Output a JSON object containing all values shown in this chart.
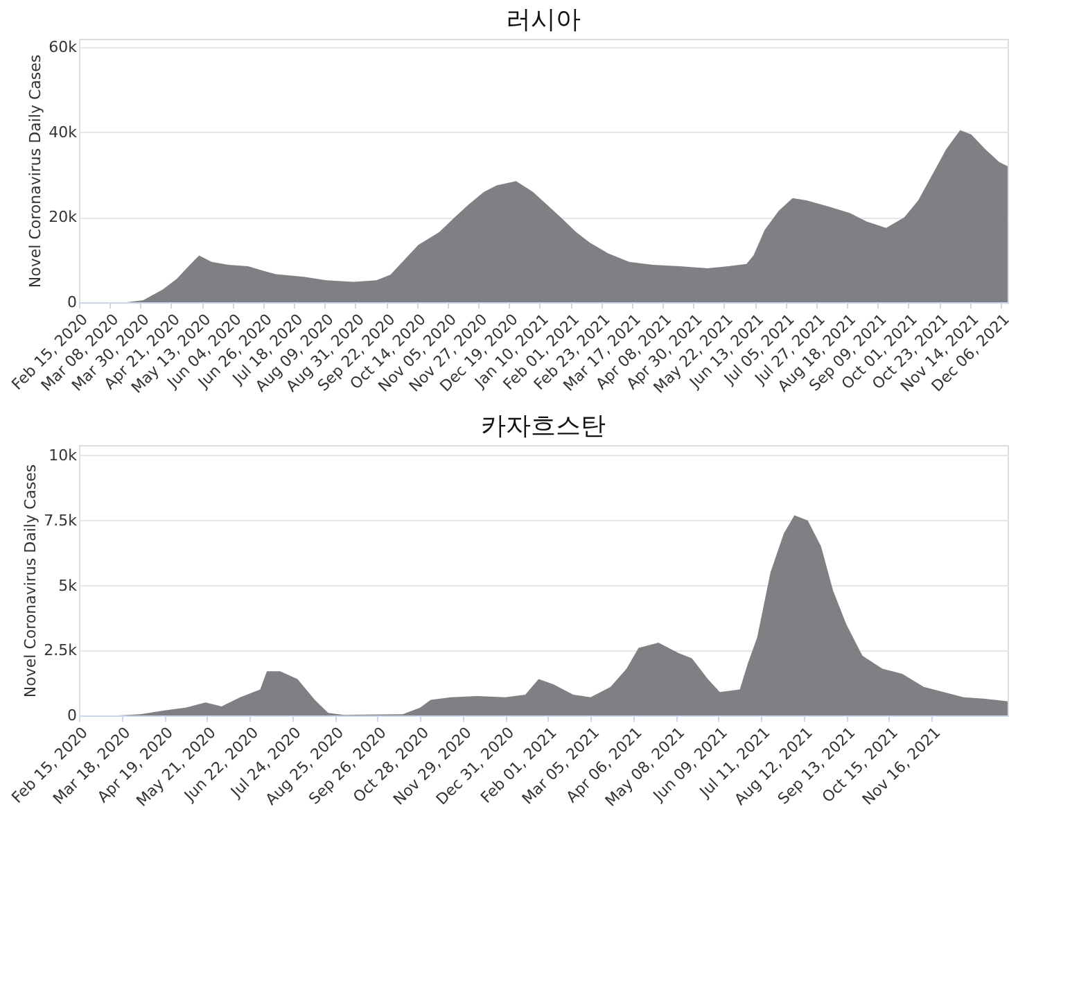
{
  "chart_data": [
    {
      "type": "area",
      "title": "러시아",
      "ylabel": "Novel Coronavirus Daily Cases",
      "grid": "y",
      "color": "#808084",
      "x": [
        "2020-02-15",
        "2020-03-20",
        "2020-04-01",
        "2020-04-15",
        "2020-04-25",
        "2020-05-05",
        "2020-05-11",
        "2020-05-20",
        "2020-06-01",
        "2020-06-15",
        "2020-06-25",
        "2020-07-05",
        "2020-07-25",
        "2020-08-10",
        "2020-08-30",
        "2020-09-15",
        "2020-09-25",
        "2020-10-05",
        "2020-10-15",
        "2020-10-30",
        "2020-11-10",
        "2020-11-20",
        "2020-12-01",
        "2020-12-10",
        "2020-12-24",
        "2021-01-05",
        "2021-01-15",
        "2021-01-25",
        "2021-02-05",
        "2021-02-15",
        "2021-02-28",
        "2021-03-15",
        "2021-04-01",
        "2021-04-20",
        "2021-05-10",
        "2021-05-25",
        "2021-06-07",
        "2021-06-12",
        "2021-06-20",
        "2021-06-30",
        "2021-07-10",
        "2021-07-20",
        "2021-08-05",
        "2021-08-20",
        "2021-09-01",
        "2021-09-15",
        "2021-09-28",
        "2021-10-08",
        "2021-10-18",
        "2021-10-28",
        "2021-11-07",
        "2021-11-15",
        "2021-11-25",
        "2021-12-05",
        "2021-12-11"
      ],
      "values": [
        0,
        0,
        500,
        3000,
        5500,
        9000,
        11000,
        9500,
        8800,
        8500,
        7500,
        6600,
        6000,
        5200,
        4800,
        5200,
        6500,
        10000,
        13500,
        16500,
        20000,
        23000,
        26000,
        27500,
        28500,
        26000,
        23000,
        20000,
        16500,
        14000,
        11500,
        9500,
        8800,
        8500,
        8000,
        8500,
        9000,
        11000,
        17000,
        21500,
        24500,
        24000,
        22500,
        21000,
        19000,
        17500,
        20000,
        24000,
        30000,
        36000,
        40500,
        39500,
        36000,
        33000,
        32000
      ],
      "xlim": [
        "2020-02-15",
        "2021-12-11"
      ],
      "xticks": [
        {
          "value": "2020-02-15",
          "label": "Feb 15, 2020"
        },
        {
          "value": "2020-03-08",
          "label": "Mar 08, 2020"
        },
        {
          "value": "2020-03-30",
          "label": "Mar 30, 2020"
        },
        {
          "value": "2020-04-21",
          "label": "Apr 21, 2020"
        },
        {
          "value": "2020-05-13",
          "label": "May 13, 2020"
        },
        {
          "value": "2020-06-04",
          "label": "Jun 04, 2020"
        },
        {
          "value": "2020-06-26",
          "label": "Jun 26, 2020"
        },
        {
          "value": "2020-07-18",
          "label": "Jul 18, 2020"
        },
        {
          "value": "2020-08-09",
          "label": "Aug 09, 2020"
        },
        {
          "value": "2020-08-31",
          "label": "Aug 31, 2020"
        },
        {
          "value": "2020-09-22",
          "label": "Sep 22, 2020"
        },
        {
          "value": "2020-10-14",
          "label": "Oct 14, 2020"
        },
        {
          "value": "2020-11-05",
          "label": "Nov 05, 2020"
        },
        {
          "value": "2020-11-27",
          "label": "Nov 27, 2020"
        },
        {
          "value": "2020-12-19",
          "label": "Dec 19, 2020"
        },
        {
          "value": "2021-01-10",
          "label": "Jan 10, 2021"
        },
        {
          "value": "2021-02-01",
          "label": "Feb 01, 2021"
        },
        {
          "value": "2021-02-23",
          "label": "Feb 23, 2021"
        },
        {
          "value": "2021-03-17",
          "label": "Mar 17, 2021"
        },
        {
          "value": "2021-04-08",
          "label": "Apr 08, 2021"
        },
        {
          "value": "2021-04-30",
          "label": "Apr 30, 2021"
        },
        {
          "value": "2021-05-22",
          "label": "May 22, 2021"
        },
        {
          "value": "2021-06-13",
          "label": "Jun 13, 2021"
        },
        {
          "value": "2021-07-05",
          "label": "Jul 05, 2021"
        },
        {
          "value": "2021-07-27",
          "label": "Jul 27, 2021"
        },
        {
          "value": "2021-08-18",
          "label": "Aug 18, 2021"
        },
        {
          "value": "2021-09-09",
          "label": "Sep 09, 2021"
        },
        {
          "value": "2021-10-01",
          "label": "Oct 01, 2021"
        },
        {
          "value": "2021-10-23",
          "label": "Oct 23, 2021"
        },
        {
          "value": "2021-11-14",
          "label": "Nov 14, 2021"
        },
        {
          "value": "2021-12-06",
          "label": "Dec 06, 2021"
        }
      ],
      "ylim": [
        0,
        62000
      ],
      "yticks": [
        {
          "value": 0,
          "label": "0"
        },
        {
          "value": 20000,
          "label": "20k"
        },
        {
          "value": 40000,
          "label": "40k"
        },
        {
          "value": 60000,
          "label": "60k"
        }
      ]
    },
    {
      "type": "area",
      "title": "카자흐스탄",
      "ylabel": "Novel Coronavirus Daily Cases",
      "grid": "y",
      "color": "#808084",
      "x": [
        "2020-02-15",
        "2020-03-15",
        "2020-04-01",
        "2020-04-20",
        "2020-05-05",
        "2020-05-20",
        "2020-06-01",
        "2020-06-15",
        "2020-06-30",
        "2020-07-05",
        "2020-07-15",
        "2020-07-28",
        "2020-08-10",
        "2020-08-20",
        "2020-09-01",
        "2020-10-15",
        "2020-10-28",
        "2020-11-05",
        "2020-11-20",
        "2020-12-10",
        "2020-12-31",
        "2021-01-15",
        "2021-01-25",
        "2021-02-05",
        "2021-02-20",
        "2021-03-05",
        "2021-03-20",
        "2021-04-01",
        "2021-04-10",
        "2021-04-25",
        "2021-05-10",
        "2021-05-20",
        "2021-06-01",
        "2021-06-10",
        "2021-06-25",
        "2021-07-01",
        "2021-07-08",
        "2021-07-18",
        "2021-07-28",
        "2021-08-05",
        "2021-08-15",
        "2021-08-25",
        "2021-09-03",
        "2021-09-13",
        "2021-09-25",
        "2021-10-10",
        "2021-10-25",
        "2021-11-10",
        "2021-11-25",
        "2021-12-10",
        "2021-12-25",
        "2022-01-12"
      ],
      "values": [
        0,
        0,
        50,
        200,
        300,
        500,
        350,
        700,
        1000,
        1700,
        1700,
        1400,
        600,
        100,
        20,
        50,
        300,
        600,
        700,
        750,
        700,
        800,
        1400,
        1200,
        800,
        700,
        1100,
        1800,
        2600,
        2800,
        2400,
        2200,
        1400,
        900,
        1000,
        2000,
        3000,
        5500,
        7000,
        7700,
        7500,
        6500,
        4800,
        3500,
        2300,
        1800,
        1600,
        1100,
        900,
        700,
        650,
        550
      ],
      "xlim": [
        "2020-02-15",
        "2022-01-12"
      ],
      "xticks": [
        {
          "value": "2020-02-15",
          "label": "Feb 15, 2020"
        },
        {
          "value": "2020-03-18",
          "label": "Mar 18, 2020"
        },
        {
          "value": "2020-04-19",
          "label": "Apr 19, 2020"
        },
        {
          "value": "2020-05-21",
          "label": "May 21, 2020"
        },
        {
          "value": "2020-06-22",
          "label": "Jun 22, 2020"
        },
        {
          "value": "2020-07-24",
          "label": "Jul 24, 2020"
        },
        {
          "value": "2020-08-25",
          "label": "Aug 25, 2020"
        },
        {
          "value": "2020-09-26",
          "label": "Sep 26, 2020"
        },
        {
          "value": "2020-10-28",
          "label": "Oct 28, 2020"
        },
        {
          "value": "2020-11-29",
          "label": "Nov 29, 2020"
        },
        {
          "value": "2020-12-31",
          "label": "Dec 31, 2020"
        },
        {
          "value": "2021-02-01",
          "label": "Feb 01, 2021"
        },
        {
          "value": "2021-03-05",
          "label": "Mar 05, 2021"
        },
        {
          "value": "2021-04-06",
          "label": "Apr 06, 2021"
        },
        {
          "value": "2021-05-08",
          "label": "May 08, 2021"
        },
        {
          "value": "2021-06-09",
          "label": "Jun 09, 2021"
        },
        {
          "value": "2021-07-11",
          "label": "Jul 11, 2021"
        },
        {
          "value": "2021-08-12",
          "label": "Aug 12, 2021"
        },
        {
          "value": "2021-09-13",
          "label": "Sep 13, 2021"
        },
        {
          "value": "2021-10-15",
          "label": "Oct 15, 2021"
        },
        {
          "value": "2021-11-16",
          "label": "Nov 16, 2021"
        }
      ],
      "ylim": [
        0,
        10400
      ],
      "yticks": [
        {
          "value": 0,
          "label": "0"
        },
        {
          "value": 2500,
          "label": "2.5k"
        },
        {
          "value": 5000,
          "label": "5k"
        },
        {
          "value": 7500,
          "label": "7.5k"
        },
        {
          "value": 10000,
          "label": "10k"
        }
      ]
    }
  ]
}
